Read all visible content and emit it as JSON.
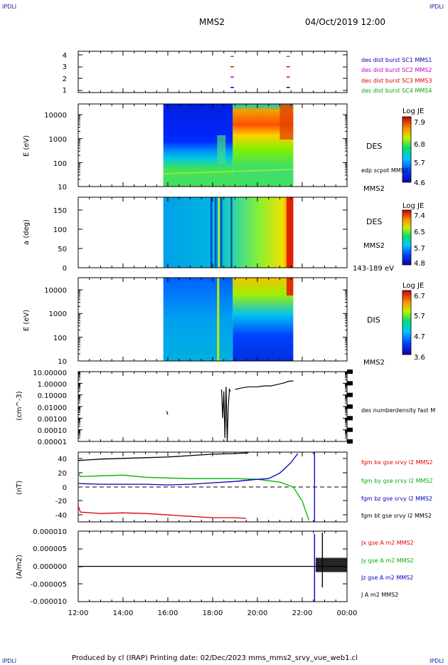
{
  "corner_label": "IPDLI",
  "header": {
    "mission": "MMS2",
    "datetime": "04/Oct/2019 12:00"
  },
  "footer": "Produced by cl (IRAP)   Printing date: 02/Dec/2023   mms_mms2_srvy_vue_web1.cl",
  "x_axis": {
    "ticks": [
      "12:00",
      "14:00",
      "16:00",
      "18:00",
      "20:00",
      "22:00",
      "00:00"
    ]
  },
  "chart_data": [
    {
      "type": "scatter",
      "title": "",
      "ylim": [
        0.5,
        4.5
      ],
      "yticks": [
        "4",
        "3",
        "2",
        "1"
      ],
      "legend": [
        "des dist burst SC1 MMS1",
        "des dist burst SC2 MMS2",
        "des dist burst SC3 MMS3",
        "des dist burst SC4 MMS4"
      ],
      "legend_colors": [
        "#0000c0",
        "#c000c0",
        "#e00000",
        "#00b000"
      ],
      "burst_intervals_hours": [
        [
          18.8,
          18.95
        ],
        [
          21.3,
          21.45
        ]
      ]
    },
    {
      "type": "heatmap",
      "ylabel": "E (eV)",
      "ytick_labels": [
        "10000",
        "1000",
        "100",
        "10"
      ],
      "label_top": "DES",
      "label_mid": "edp scpot MMS2",
      "label_bottom": "MMS2",
      "colorbar": {
        "title": "Log JE",
        "ticks": [
          "7.9",
          "6.8",
          "5.7",
          "4.6"
        ]
      },
      "data_interval_hours": [
        15.8,
        21.6
      ]
    },
    {
      "type": "heatmap",
      "ylabel": "a (deg)",
      "ytick_labels": [
        "150",
        "100",
        "50",
        "0"
      ],
      "label_top": "DES",
      "label_mid": "MMS2",
      "label_bottom": "143-189 eV",
      "colorbar": {
        "title": "Log JE",
        "ticks": [
          "7.4",
          "6.5",
          "5.7",
          "4.8"
        ]
      },
      "data_interval_hours": [
        15.8,
        21.6
      ]
    },
    {
      "type": "heatmap",
      "ylabel": "E (eV)",
      "ytick_labels": [
        "10000",
        "1000",
        "100",
        "10"
      ],
      "label_top": "DIS",
      "label_bottom": "MMS2",
      "colorbar": {
        "title": "Log JE",
        "ticks": [
          "6.7",
          "5.7",
          "4.7",
          "3.6"
        ]
      },
      "data_interval_hours": [
        15.8,
        21.6
      ]
    },
    {
      "type": "line",
      "ylabel": "(cm^-3)",
      "ytick_labels": [
        "10.00000",
        "1.00000",
        "0.10000",
        "0.01000",
        "0.00100",
        "0.00010",
        "0.00001"
      ],
      "legend": [
        "des numberdensity fast M"
      ],
      "series": [
        {
          "x_hours": [
            15.95,
            16.0
          ],
          "y": [
            0.004,
            0.002
          ]
        },
        {
          "x_hours": [
            18.4,
            18.45,
            18.5,
            18.55,
            18.6,
            18.65,
            18.7,
            18.75,
            18.8
          ],
          "y": [
            0.3,
            0.001,
            0.2,
            2e-05,
            0.5,
            1e-05,
            0.01,
            0.3,
            0.2
          ]
        },
        {
          "x_hours": [
            19.0,
            19.3,
            19.6,
            20.0,
            20.3,
            20.6,
            20.9,
            21.2,
            21.4,
            21.6
          ],
          "y": [
            0.3,
            0.4,
            0.5,
            0.5,
            0.6,
            0.6,
            0.8,
            1.1,
            1.5,
            1.6
          ]
        }
      ]
    },
    {
      "type": "line",
      "ylabel": "(nT)",
      "ylim": [
        -50,
        50
      ],
      "ytick_labels": [
        "40",
        "20",
        "0",
        "-20",
        "-40"
      ],
      "legend": [
        "fgm bx gse srvy l2 MMS2",
        "fgm by gse srvy l2 MMS2",
        "fgm bz gse srvy l2 MMS2",
        "fgm bt gse srvy l2 MMS2"
      ],
      "legend_colors": [
        "#e00000",
        "#00b000",
        "#0000c0",
        "#000000"
      ],
      "series": [
        {
          "name": "fgm bx gse srvy l2 MMS2",
          "x_hours": [
            12.0,
            12.1,
            13.0,
            14.0,
            15.0,
            16.0,
            17.0,
            18.0,
            19.0,
            19.5
          ],
          "y": [
            -27,
            -36,
            -38,
            -37,
            -38,
            -40,
            -42,
            -44,
            -44,
            -45
          ]
        },
        {
          "name": "fgm by gse srvy l2 MMS2",
          "x_hours": [
            12.0,
            12.1,
            13.0,
            14.0,
            15.0,
            16.0,
            17.0,
            18.0,
            19.0,
            20.0,
            21.0,
            21.6,
            22.0,
            22.3
          ],
          "y": [
            20,
            15,
            16,
            17,
            14,
            13,
            12,
            12,
            12,
            11,
            7,
            0,
            -20,
            -48
          ]
        },
        {
          "name": "fgm bz gse srvy l2 MMS2",
          "x_hours": [
            12.0,
            13.0,
            14.0,
            15.0,
            16.0,
            17.0,
            18.0,
            19.0,
            20.0,
            20.5,
            21.0,
            21.5,
            21.8
          ],
          "y": [
            5,
            4,
            4,
            4,
            3,
            4,
            6,
            8,
            11,
            12,
            20,
            35,
            48
          ]
        },
        {
          "name": "fgm bt gse srvy l2 MMS2",
          "x_hours": [
            12.0,
            13.0,
            14.0,
            15.0,
            16.0,
            17.0,
            18.0,
            19.0,
            19.6
          ],
          "y": [
            38,
            40,
            41,
            42,
            43,
            45,
            47,
            48,
            49
          ]
        }
      ]
    },
    {
      "type": "line",
      "ylabel": "(A/m2)",
      "ylim": [
        -1e-05,
        1e-05
      ],
      "ytick_labels": [
        "0.000010",
        "0.000005",
        "0.000000",
        "-0.000005",
        "-0.000010"
      ],
      "legend": [
        "Jx gse A m2 MMS2",
        "Jy gse A m2 MMS2",
        "Jz gse A m2 MMS2",
        "J A m2 MMS2"
      ],
      "legend_colors": [
        "#e00000",
        "#00b000",
        "#0000c0",
        "#000000"
      ]
    }
  ]
}
